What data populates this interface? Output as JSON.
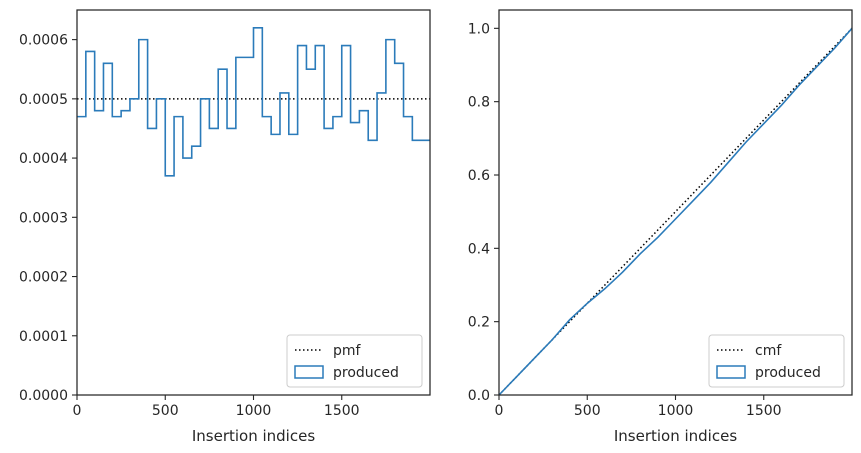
{
  "chart_data": [
    {
      "type": "step",
      "xlabel": "Insertion indices",
      "ylabel": "",
      "xlim": [
        0,
        2000
      ],
      "ylim": [
        0,
        0.00065
      ],
      "xticks": [
        0,
        500,
        1000,
        1500
      ],
      "xtick_labels": [
        "0",
        "500",
        "1000",
        "1500"
      ],
      "yticks": [
        0,
        0.0001,
        0.0002,
        0.0003,
        0.0004,
        0.0005,
        0.0006
      ],
      "ytick_labels": [
        "0.0000",
        "0.0001",
        "0.0002",
        "0.0003",
        "0.0004",
        "0.0005",
        "0.0006"
      ],
      "legend_position": "lower right",
      "series": [
        {
          "name": "pmf",
          "style": "dotted",
          "color": "#000000",
          "x": [
            0,
            2000
          ],
          "values": [
            0.0005,
            0.0005
          ]
        },
        {
          "name": "produced",
          "style": "step",
          "color": "#2b7bba",
          "bin_edges": [
            0,
            50,
            100,
            150,
            200,
            250,
            300,
            350,
            400,
            450,
            500,
            550,
            600,
            650,
            700,
            750,
            800,
            850,
            900,
            950,
            1000,
            1050,
            1100,
            1150,
            1200,
            1250,
            1300,
            1350,
            1400,
            1450,
            1500,
            1550,
            1600,
            1650,
            1700,
            1750,
            1800,
            1850,
            1900,
            1950,
            2000
          ],
          "values": [
            0.00047,
            0.00058,
            0.00048,
            0.00056,
            0.00047,
            0.00048,
            0.0005,
            0.0006,
            0.00045,
            0.0005,
            0.00037,
            0.00047,
            0.0004,
            0.00042,
            0.0005,
            0.00045,
            0.00055,
            0.00045,
            0.00057,
            0.00057,
            0.00062,
            0.00047,
            0.00044,
            0.00051,
            0.00044,
            0.00059,
            0.00055,
            0.00059,
            0.00045,
            0.00047,
            0.00059,
            0.00046,
            0.00048,
            0.00043,
            0.00051,
            0.0006,
            0.00056,
            0.00047,
            0.00043,
            0.00043
          ]
        }
      ]
    },
    {
      "type": "line",
      "xlabel": "Insertion indices",
      "ylabel": "",
      "xlim": [
        0,
        2000
      ],
      "ylim": [
        0,
        1.05
      ],
      "xticks": [
        0,
        500,
        1000,
        1500
      ],
      "xtick_labels": [
        "0",
        "500",
        "1000",
        "1500"
      ],
      "yticks": [
        0,
        0.2,
        0.4,
        0.6,
        0.8,
        1.0
      ],
      "ytick_labels": [
        "0.0",
        "0.2",
        "0.4",
        "0.6",
        "0.8",
        "1.0"
      ],
      "legend_position": "lower right",
      "series": [
        {
          "name": "cmf",
          "style": "dotted",
          "color": "#000000",
          "x": [
            0,
            2000
          ],
          "values": [
            0,
            1.0
          ]
        },
        {
          "name": "produced",
          "style": "line",
          "color": "#2b7bba",
          "x": [
            0,
            100,
            200,
            300,
            400,
            500,
            600,
            700,
            800,
            900,
            1000,
            1100,
            1200,
            1300,
            1400,
            1500,
            1600,
            1700,
            1800,
            1900,
            2000
          ],
          "values": [
            0,
            0.05,
            0.1,
            0.15,
            0.205,
            0.25,
            0.29,
            0.335,
            0.385,
            0.43,
            0.48,
            0.53,
            0.58,
            0.635,
            0.69,
            0.74,
            0.79,
            0.845,
            0.895,
            0.945,
            1.0
          ]
        }
      ]
    }
  ]
}
